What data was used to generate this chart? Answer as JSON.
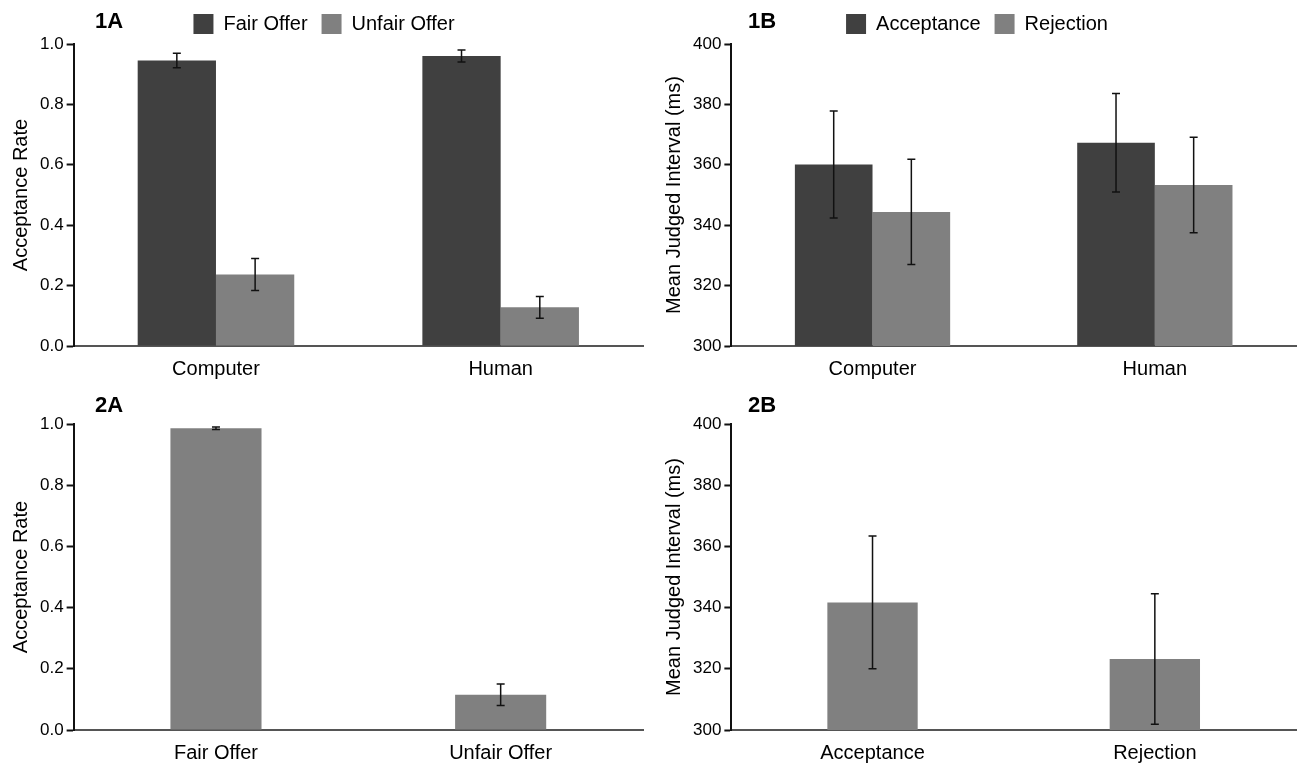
{
  "chart_data": [
    {
      "type": "bar",
      "title": "1A",
      "ylabel": "Acceptance Rate",
      "categories": [
        "Computer",
        "Human"
      ],
      "legend": "top",
      "ylim": [
        0,
        1
      ],
      "yticks": [
        {
          "value": 0,
          "label": "0.0"
        },
        {
          "value": 0.2,
          "label": "0.2"
        },
        {
          "value": 0.4,
          "label": "0.4"
        },
        {
          "value": 0.6,
          "label": "0.6"
        },
        {
          "value": 0.8,
          "label": "0.8"
        },
        {
          "value": 1,
          "label": "1.0"
        }
      ],
      "series": [
        {
          "name": "Fair Offer",
          "color": "#404040",
          "values": [
            0.945,
            0.96
          ],
          "errors": [
            0.024,
            0.02
          ]
        },
        {
          "name": "Unfair Offer",
          "color": "#808080",
          "values": [
            0.237,
            0.128
          ],
          "errors": [
            0.053,
            0.036
          ]
        }
      ]
    },
    {
      "type": "bar",
      "title": "1B",
      "ylabel": "Mean Judged Interval (ms)",
      "categories": [
        "Computer",
        "Human"
      ],
      "legend": "top",
      "ylim": [
        300,
        400
      ],
      "yticks": [
        300,
        320,
        340,
        360,
        380,
        400
      ],
      "series": [
        {
          "name": "Acceptance",
          "color": "#404040",
          "values": [
            360.1,
            367.3
          ],
          "errors": [
            17.7,
            16.3
          ]
        },
        {
          "name": "Rejection",
          "color": "#808080",
          "values": [
            344.4,
            353.3
          ],
          "errors": [
            17.4,
            15.8
          ]
        }
      ]
    },
    {
      "type": "bar",
      "title": "2A",
      "ylabel": "Acceptance Rate",
      "categories": [
        "Fair Offer",
        "Unfair Offer"
      ],
      "ylim": [
        0,
        1
      ],
      "yticks": [
        {
          "value": 0,
          "label": "0.0"
        },
        {
          "value": 0.2,
          "label": "0.2"
        },
        {
          "value": 0.4,
          "label": "0.4"
        },
        {
          "value": 0.6,
          "label": "0.6"
        },
        {
          "value": 0.8,
          "label": "0.8"
        },
        {
          "value": 1,
          "label": "1.0"
        }
      ],
      "series": [
        {
          "color": "#808080",
          "values": [
            0.986,
            0.115
          ],
          "errors": [
            0.004,
            0.035
          ]
        }
      ]
    },
    {
      "type": "bar",
      "title": "2B",
      "ylabel": "Mean Judged Interval (ms)",
      "categories": [
        "Acceptance",
        "Rejection"
      ],
      "ylim": [
        300,
        400
      ],
      "yticks": [
        300,
        320,
        340,
        360,
        380,
        400
      ],
      "series": [
        {
          "color": "#808080",
          "values": [
            341.7,
            323.2
          ],
          "errors": [
            21.7,
            21.3
          ]
        }
      ]
    }
  ]
}
